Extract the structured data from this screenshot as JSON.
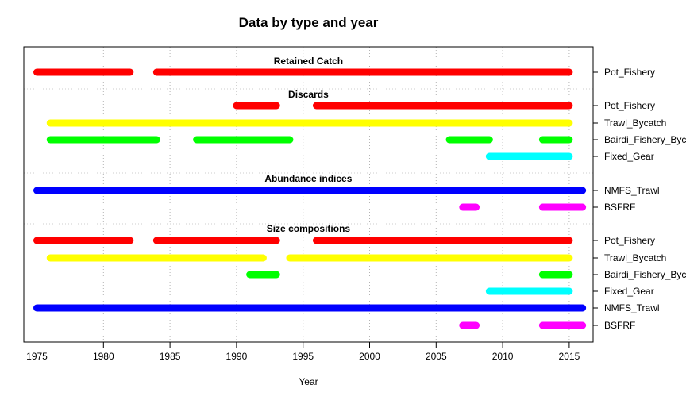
{
  "chart_data": {
    "type": "gantt",
    "title": "Data by type and year",
    "xlabel": "Year",
    "ylabel": "",
    "xlim": [
      1974.8,
      1987.0
    ],
    "x_ticks": [
      1975,
      1980,
      1985,
      1990,
      1995,
      2000,
      2005,
      2010,
      2015
    ],
    "grid": true,
    "colors": {
      "Pot_Fishery": "#ff0000",
      "Trawl_Bycatch": "#ffff00",
      "Bairdi_Fishery_Bycatch": "#00ff00",
      "Fixed_Gear": "#00ffff",
      "NMFS_Trawl": "#0000ff",
      "BSFRF": "#ff00ff"
    },
    "groups": [
      {
        "name": "Retained Catch",
        "rows": [
          {
            "label": "Pot_Fishery",
            "fleet": "Pot_Fishery",
            "segments": [
              [
                1975,
                1982
              ],
              [
                1984,
                2015
              ]
            ]
          }
        ]
      },
      {
        "name": "Discards",
        "rows": [
          {
            "label": "Pot_Fishery",
            "fleet": "Pot_Fishery",
            "segments": [
              [
                1990,
                1993
              ],
              [
                1996,
                2015
              ]
            ]
          },
          {
            "label": "Trawl_Bycatch",
            "fleet": "Trawl_Bycatch",
            "segments": [
              [
                1976,
                2015
              ]
            ]
          },
          {
            "label": "Bairdi_Fishery_Bycatch",
            "fleet": "Bairdi_Fishery_Bycatch",
            "segments": [
              [
                1976,
                1984
              ],
              [
                1987,
                1994
              ],
              [
                2006,
                2009
              ],
              [
                2013,
                2015
              ]
            ]
          },
          {
            "label": "Fixed_Gear",
            "fleet": "Fixed_Gear",
            "segments": [
              [
                2009,
                2015
              ]
            ]
          }
        ]
      },
      {
        "name": "Abundance indices",
        "rows": [
          {
            "label": "NMFS_Trawl",
            "fleet": "NMFS_Trawl",
            "segments": [
              [
                1975,
                2016
              ]
            ]
          },
          {
            "label": "BSFRF",
            "fleet": "BSFRF",
            "segments": [
              [
                2007,
                2008
              ],
              [
                2013,
                2016
              ]
            ]
          }
        ]
      },
      {
        "name": "Size compositions",
        "rows": [
          {
            "label": "Pot_Fishery",
            "fleet": "Pot_Fishery",
            "segments": [
              [
                1975,
                1982
              ],
              [
                1984,
                1993
              ],
              [
                1996,
                2015
              ]
            ]
          },
          {
            "label": "Trawl_Bycatch",
            "fleet": "Trawl_Bycatch",
            "segments": [
              [
                1976,
                1992
              ],
              [
                1994,
                2015
              ]
            ]
          },
          {
            "label": "Bairdi_Fishery_Bycatch",
            "fleet": "Bairdi_Fishery_Bycatch",
            "segments": [
              [
                1991,
                1993
              ],
              [
                2013,
                2015
              ]
            ]
          },
          {
            "label": "Fixed_Gear",
            "fleet": "Fixed_Gear",
            "segments": [
              [
                2009,
                2015
              ]
            ]
          },
          {
            "label": "NMFS_Trawl",
            "fleet": "NMFS_Trawl",
            "segments": [
              [
                1975,
                2016
              ]
            ]
          },
          {
            "label": "BSFRF",
            "fleet": "BSFRF",
            "segments": [
              [
                2007,
                2008
              ],
              [
                2013,
                2016
              ]
            ]
          }
        ]
      }
    ]
  }
}
